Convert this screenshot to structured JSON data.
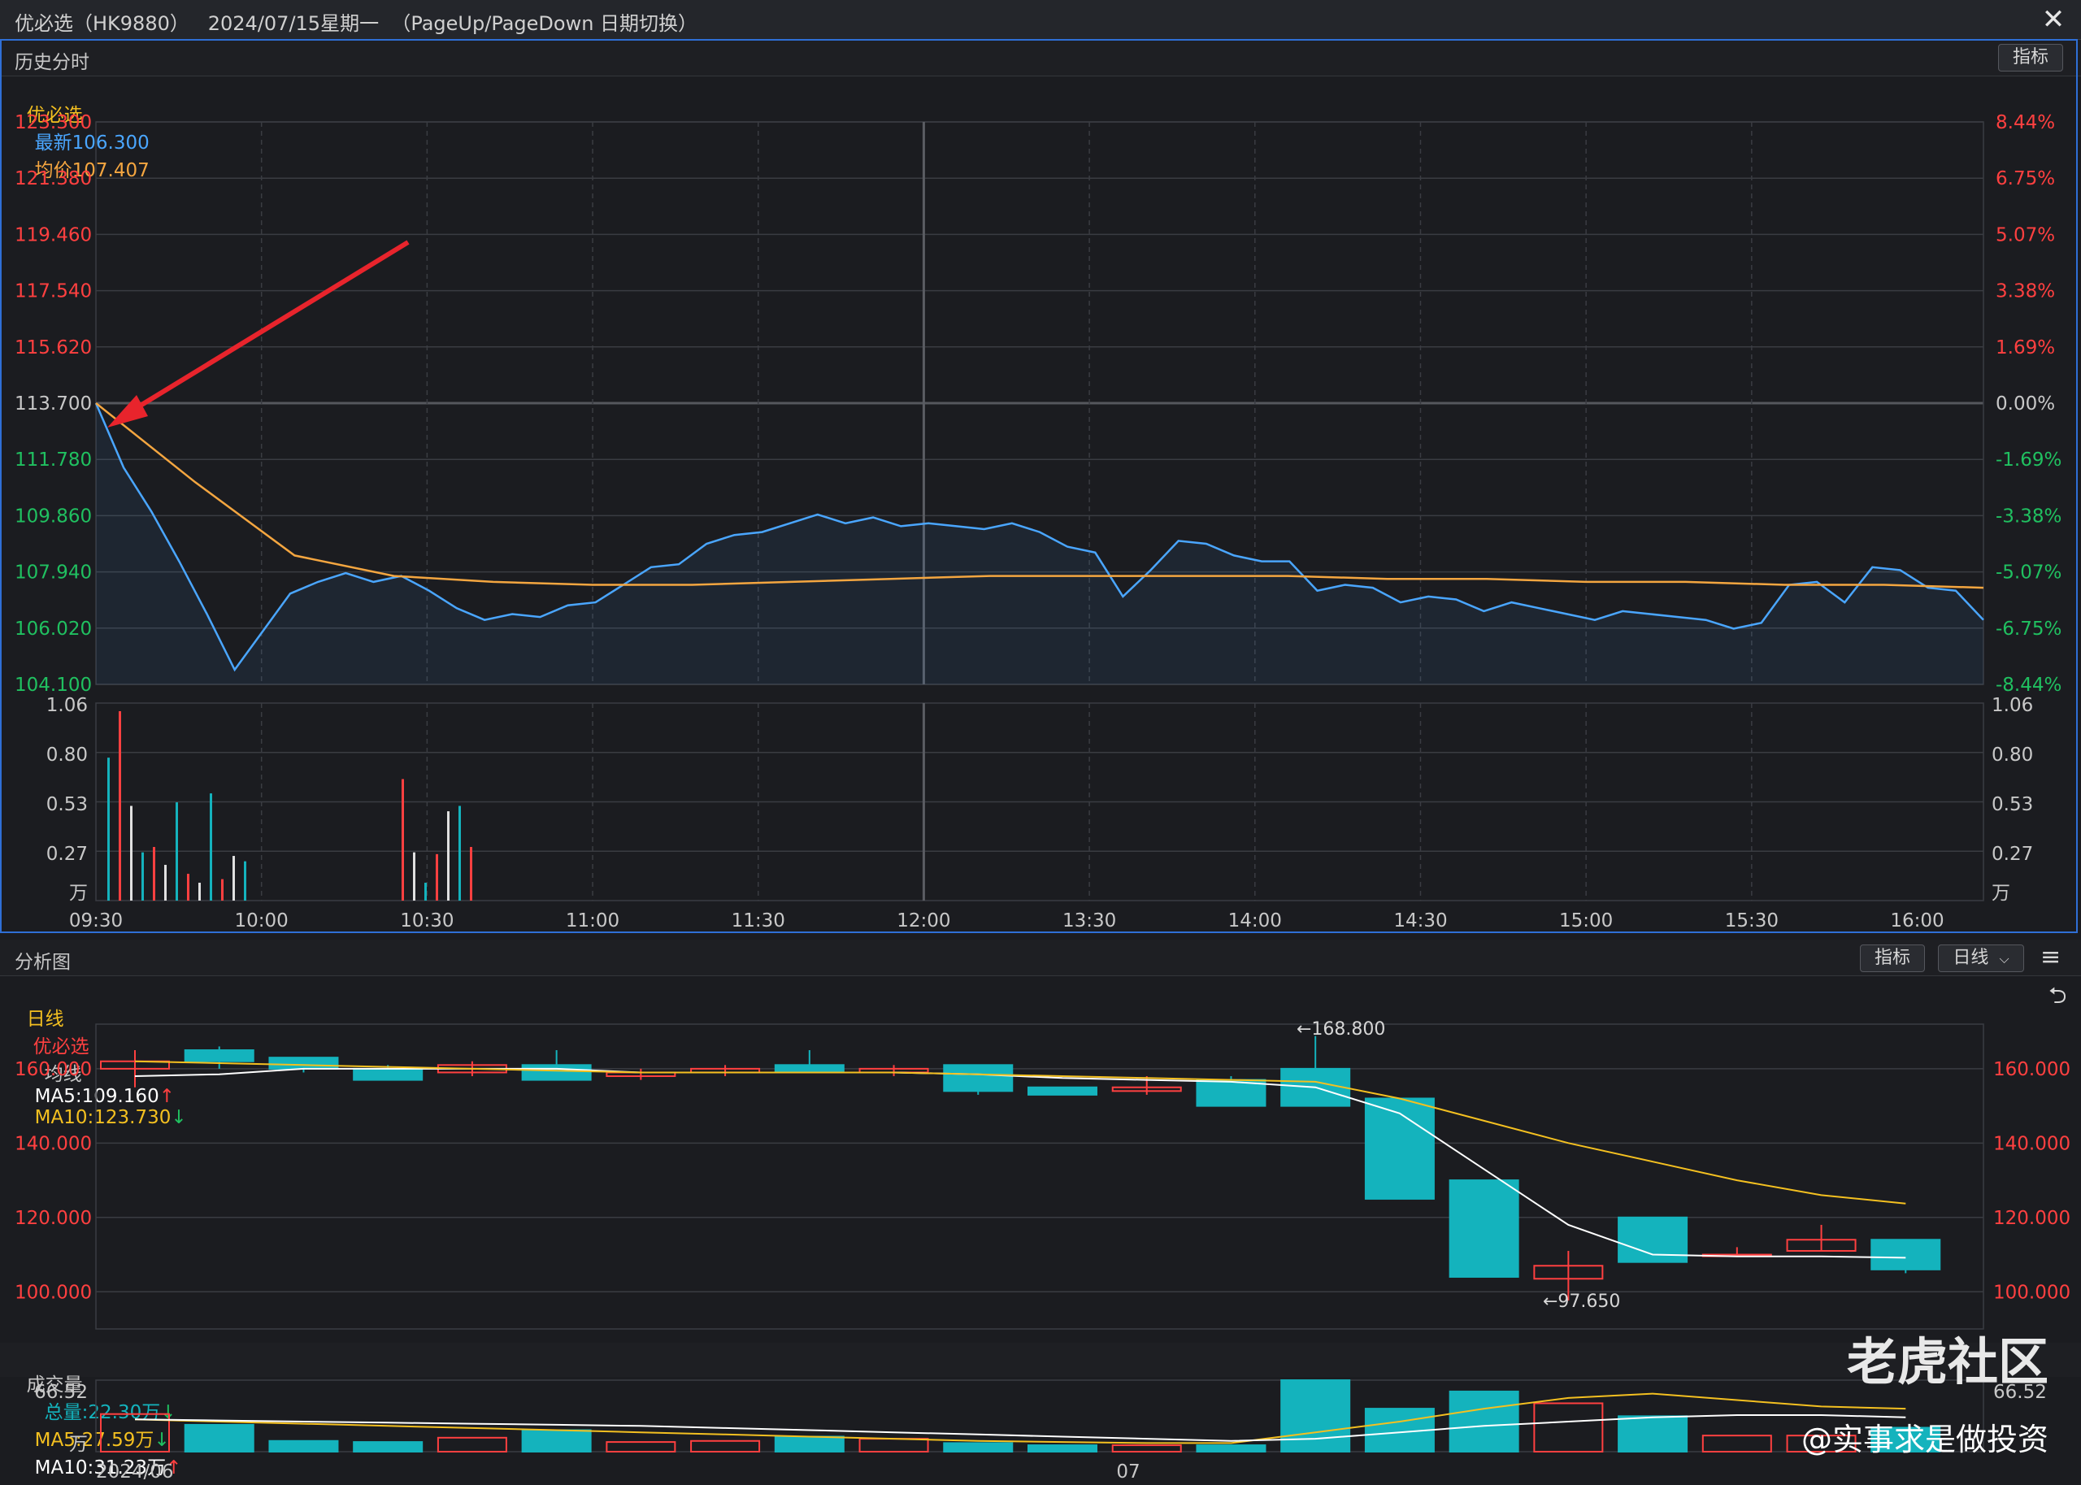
{
  "window": {
    "title": "优必选（HK9880）   2024/07/15星期一  （PageUp/PageDown 日期切换）",
    "close_glyph": "✕"
  },
  "intraday": {
    "panel_title": "历史分时",
    "indicator_btn": "指标",
    "legend": {
      "name": "优必选",
      "latest": "最新106.300",
      "avg": "均价107.407"
    },
    "price_ticks": [
      "123.300",
      "121.380",
      "119.460",
      "117.540",
      "115.620",
      "113.700",
      "111.780",
      "109.860",
      "107.940",
      "106.020",
      "104.100"
    ],
    "pct_ticks": [
      "8.44%",
      "6.75%",
      "5.07%",
      "3.38%",
      "1.69%",
      "0.00%",
      "-1.69%",
      "-3.38%",
      "-5.07%",
      "-6.75%",
      "-8.44%"
    ],
    "vol_ticks": [
      "1.06",
      "0.80",
      "0.53",
      "0.27"
    ],
    "vol_unit": "万",
    "time_ticks": [
      "09:30",
      "10:00",
      "10:30",
      "11:00",
      "11:30",
      "12:00",
      "13:30",
      "14:00",
      "14:30",
      "15:00",
      "15:30",
      "16:00"
    ]
  },
  "analysis": {
    "panel_title": "分析图",
    "indicator_btn": "指标",
    "period_select": "日线",
    "menu_glyph": "≡",
    "back_glyph": "⮌",
    "legend": {
      "period": "日线",
      "name": "优必选",
      "ma_label": "均线",
      "ma5": "MA5:109.160",
      "ma10": "MA10:123.730"
    },
    "price_ticks": [
      "160.000",
      "140.000",
      "120.000",
      "100.000"
    ],
    "high_note": "←168.800",
    "low_note": "←97.650",
    "volume_legend": {
      "title": "成交量",
      "total": "总量:22.30万",
      "ma5": "MA5:27.59万",
      "ma10": "MA10:31.23万"
    },
    "vol_ticks": [
      "66.52"
    ],
    "vol_unit": "万",
    "date_ticks": [
      "2024/06",
      "07"
    ]
  },
  "watermark": {
    "logo": "老虎社区",
    "handle": "@实事求是做投资"
  },
  "colors": {
    "up": "#ff4040",
    "down": "#14b3bd",
    "price_line": "#4aa6ff",
    "avg_line": "#f4a640",
    "ma5": "#ffffff",
    "ma10": "#f4c020",
    "grid": "#3a3c42"
  },
  "chart_data": [
    {
      "type": "line",
      "title": "历史分时",
      "x_labels": [
        "09:30",
        "10:00",
        "10:30",
        "11:00",
        "11:30",
        "12:00",
        "13:30",
        "14:00",
        "14:30",
        "15:00",
        "15:30",
        "16:00"
      ],
      "ylim": [
        104.1,
        123.3
      ],
      "series": [
        {
          "name": "最新",
          "values": [
            113.7,
            111.5,
            110.0,
            108.3,
            106.5,
            104.6,
            105.9,
            107.2,
            107.6,
            107.9,
            107.6,
            107.8,
            107.3,
            106.7,
            106.3,
            106.5,
            106.4,
            106.8,
            106.9,
            107.5,
            108.1,
            108.2,
            108.9,
            109.2,
            109.3,
            109.6,
            109.9,
            109.6,
            109.8,
            109.5,
            109.6,
            109.5,
            109.4,
            109.6,
            109.3,
            108.8,
            108.6,
            107.1,
            108.0,
            109.0,
            108.9,
            108.5,
            108.3,
            108.3,
            107.3,
            107.5,
            107.4,
            106.9,
            107.1,
            107.0,
            106.6,
            106.9,
            106.7,
            106.5,
            106.3,
            106.6,
            106.5,
            106.4,
            106.3,
            106.0,
            106.2,
            107.5,
            107.6,
            106.9,
            108.1,
            108.0,
            107.4,
            107.3,
            106.3
          ]
        },
        {
          "name": "均价",
          "values": [
            113.7,
            111.0,
            108.5,
            107.8,
            107.6,
            107.5,
            107.5,
            107.6,
            107.7,
            107.8,
            107.8,
            107.8,
            107.8,
            107.7,
            107.7,
            107.6,
            107.6,
            107.5,
            107.5,
            107.4
          ]
        }
      ]
    },
    {
      "type": "bar",
      "title": "",
      "ylim": [
        0,
        1.06
      ],
      "series": [
        {
          "name": "",
          "values": [
            0.8,
            1.06,
            0.53,
            0.27,
            0.3,
            0.2,
            0.55,
            0.15,
            0.1,
            0.6,
            0.12,
            0.25,
            0.22,
            0.68,
            0.27,
            0.1,
            0.26,
            0.5,
            0.53,
            0.3
          ]
        }
      ]
    },
    {
      "type": "candlestick",
      "title": "日线",
      "ylim": [
        90,
        172
      ],
      "candles": [
        {
          "o": 160,
          "h": 165,
          "l": 155,
          "c": 162
        },
        {
          "o": 165,
          "h": 166,
          "l": 160,
          "c": 162
        },
        {
          "o": 163,
          "h": 163,
          "l": 159,
          "c": 160
        },
        {
          "o": 160,
          "h": 161,
          "l": 157,
          "c": 157
        },
        {
          "o": 159,
          "h": 162,
          "l": 158,
          "c": 161
        },
        {
          "o": 161,
          "h": 165,
          "l": 157,
          "c": 157
        },
        {
          "o": 158,
          "h": 160,
          "l": 157,
          "c": 159
        },
        {
          "o": 159,
          "h": 161,
          "l": 158,
          "c": 160
        },
        {
          "o": 161,
          "h": 165,
          "l": 159,
          "c": 159
        },
        {
          "o": 159,
          "h": 161,
          "l": 158,
          "c": 160
        },
        {
          "o": 161,
          "h": 161,
          "l": 153,
          "c": 154
        },
        {
          "o": 155,
          "h": 155,
          "l": 153,
          "c": 153
        },
        {
          "o": 154,
          "h": 158,
          "l": 153,
          "c": 155
        },
        {
          "o": 157,
          "h": 158,
          "l": 150,
          "c": 150
        },
        {
          "o": 160,
          "h": 168.8,
          "l": 150,
          "c": 150
        },
        {
          "o": 152,
          "h": 152,
          "l": 125,
          "c": 125
        },
        {
          "o": 130,
          "h": 130,
          "l": 104,
          "c": 104
        },
        {
          "o": 103.5,
          "h": 111,
          "l": 97.65,
          "c": 107
        },
        {
          "o": 120,
          "h": 120,
          "l": 108,
          "c": 108
        },
        {
          "o": 110,
          "h": 112,
          "l": 110,
          "c": 110
        },
        {
          "o": 111,
          "h": 118,
          "l": 111,
          "c": 114
        },
        {
          "o": 114,
          "h": 114,
          "l": 105,
          "c": 106
        }
      ],
      "series": [
        {
          "name": "MA5",
          "values": [
            158,
            158.5,
            160,
            160,
            160,
            160,
            159,
            159,
            159,
            159,
            158.5,
            157.5,
            157,
            156.5,
            155,
            148,
            133,
            118,
            110,
            109.5,
            109.5,
            109.16
          ]
        },
        {
          "name": "MA10",
          "values": [
            162,
            161.5,
            161,
            160.5,
            160,
            159.5,
            159,
            159,
            159,
            159,
            158.5,
            158,
            157.5,
            157,
            156.5,
            152,
            146,
            140,
            135,
            130,
            126,
            123.73
          ]
        }
      ]
    },
    {
      "type": "bar",
      "title": "成交量",
      "ylim": [
        0,
        66.52
      ],
      "series": [
        {
          "name": "总量",
          "values": [
            35,
            25,
            10,
            9,
            13,
            20,
            9,
            10,
            14,
            12,
            8,
            6,
            6,
            6,
            66.52,
            40,
            56,
            45,
            33,
            15,
            15,
            22.3
          ]
        }
      ]
    }
  ]
}
